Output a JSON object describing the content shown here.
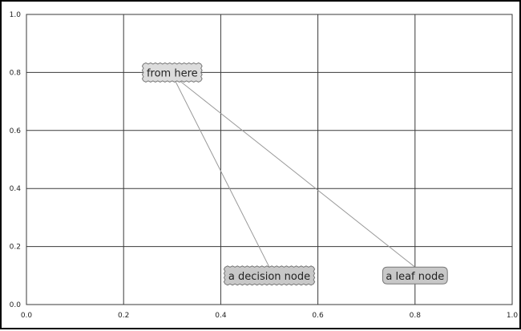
{
  "chart_data": {
    "type": "annotation",
    "title": "",
    "xlabel": "",
    "ylabel": "",
    "xlim": [
      0.0,
      1.0
    ],
    "ylim": [
      0.0,
      1.0
    ],
    "grid": true,
    "xticks": [
      0.0,
      0.2,
      0.4,
      0.6,
      0.8,
      1.0
    ],
    "yticks": [
      0.0,
      0.2,
      0.4,
      0.6,
      0.8,
      1.0
    ],
    "xtick_labels": [
      "0.0",
      "0.2",
      "0.4",
      "0.6",
      "0.8",
      "1.0"
    ],
    "ytick_labels": [
      "0.0",
      "0.2",
      "0.4",
      "0.6",
      "0.8",
      "1.0"
    ],
    "nodes": [
      {
        "name": "from-here",
        "text": "from here",
        "x": 0.3,
        "y": 0.8,
        "style": "sawtooth",
        "fill": "#dcdcdc"
      },
      {
        "name": "decision-node",
        "text": "a decision node",
        "x": 0.5,
        "y": 0.1,
        "style": "sawtooth",
        "fill": "#c8c8c8"
      },
      {
        "name": "leaf-node",
        "text": "a leaf node",
        "x": 0.8,
        "y": 0.1,
        "style": "round",
        "fill": "#c8c8c8"
      }
    ],
    "arrows": [
      {
        "from": "from-here",
        "to": "decision-node"
      },
      {
        "from": "from-here",
        "to": "leaf-node"
      }
    ],
    "colors": {
      "grid": "#3a3a3a",
      "arrow": "#999999",
      "node_edge": "#777777"
    }
  }
}
